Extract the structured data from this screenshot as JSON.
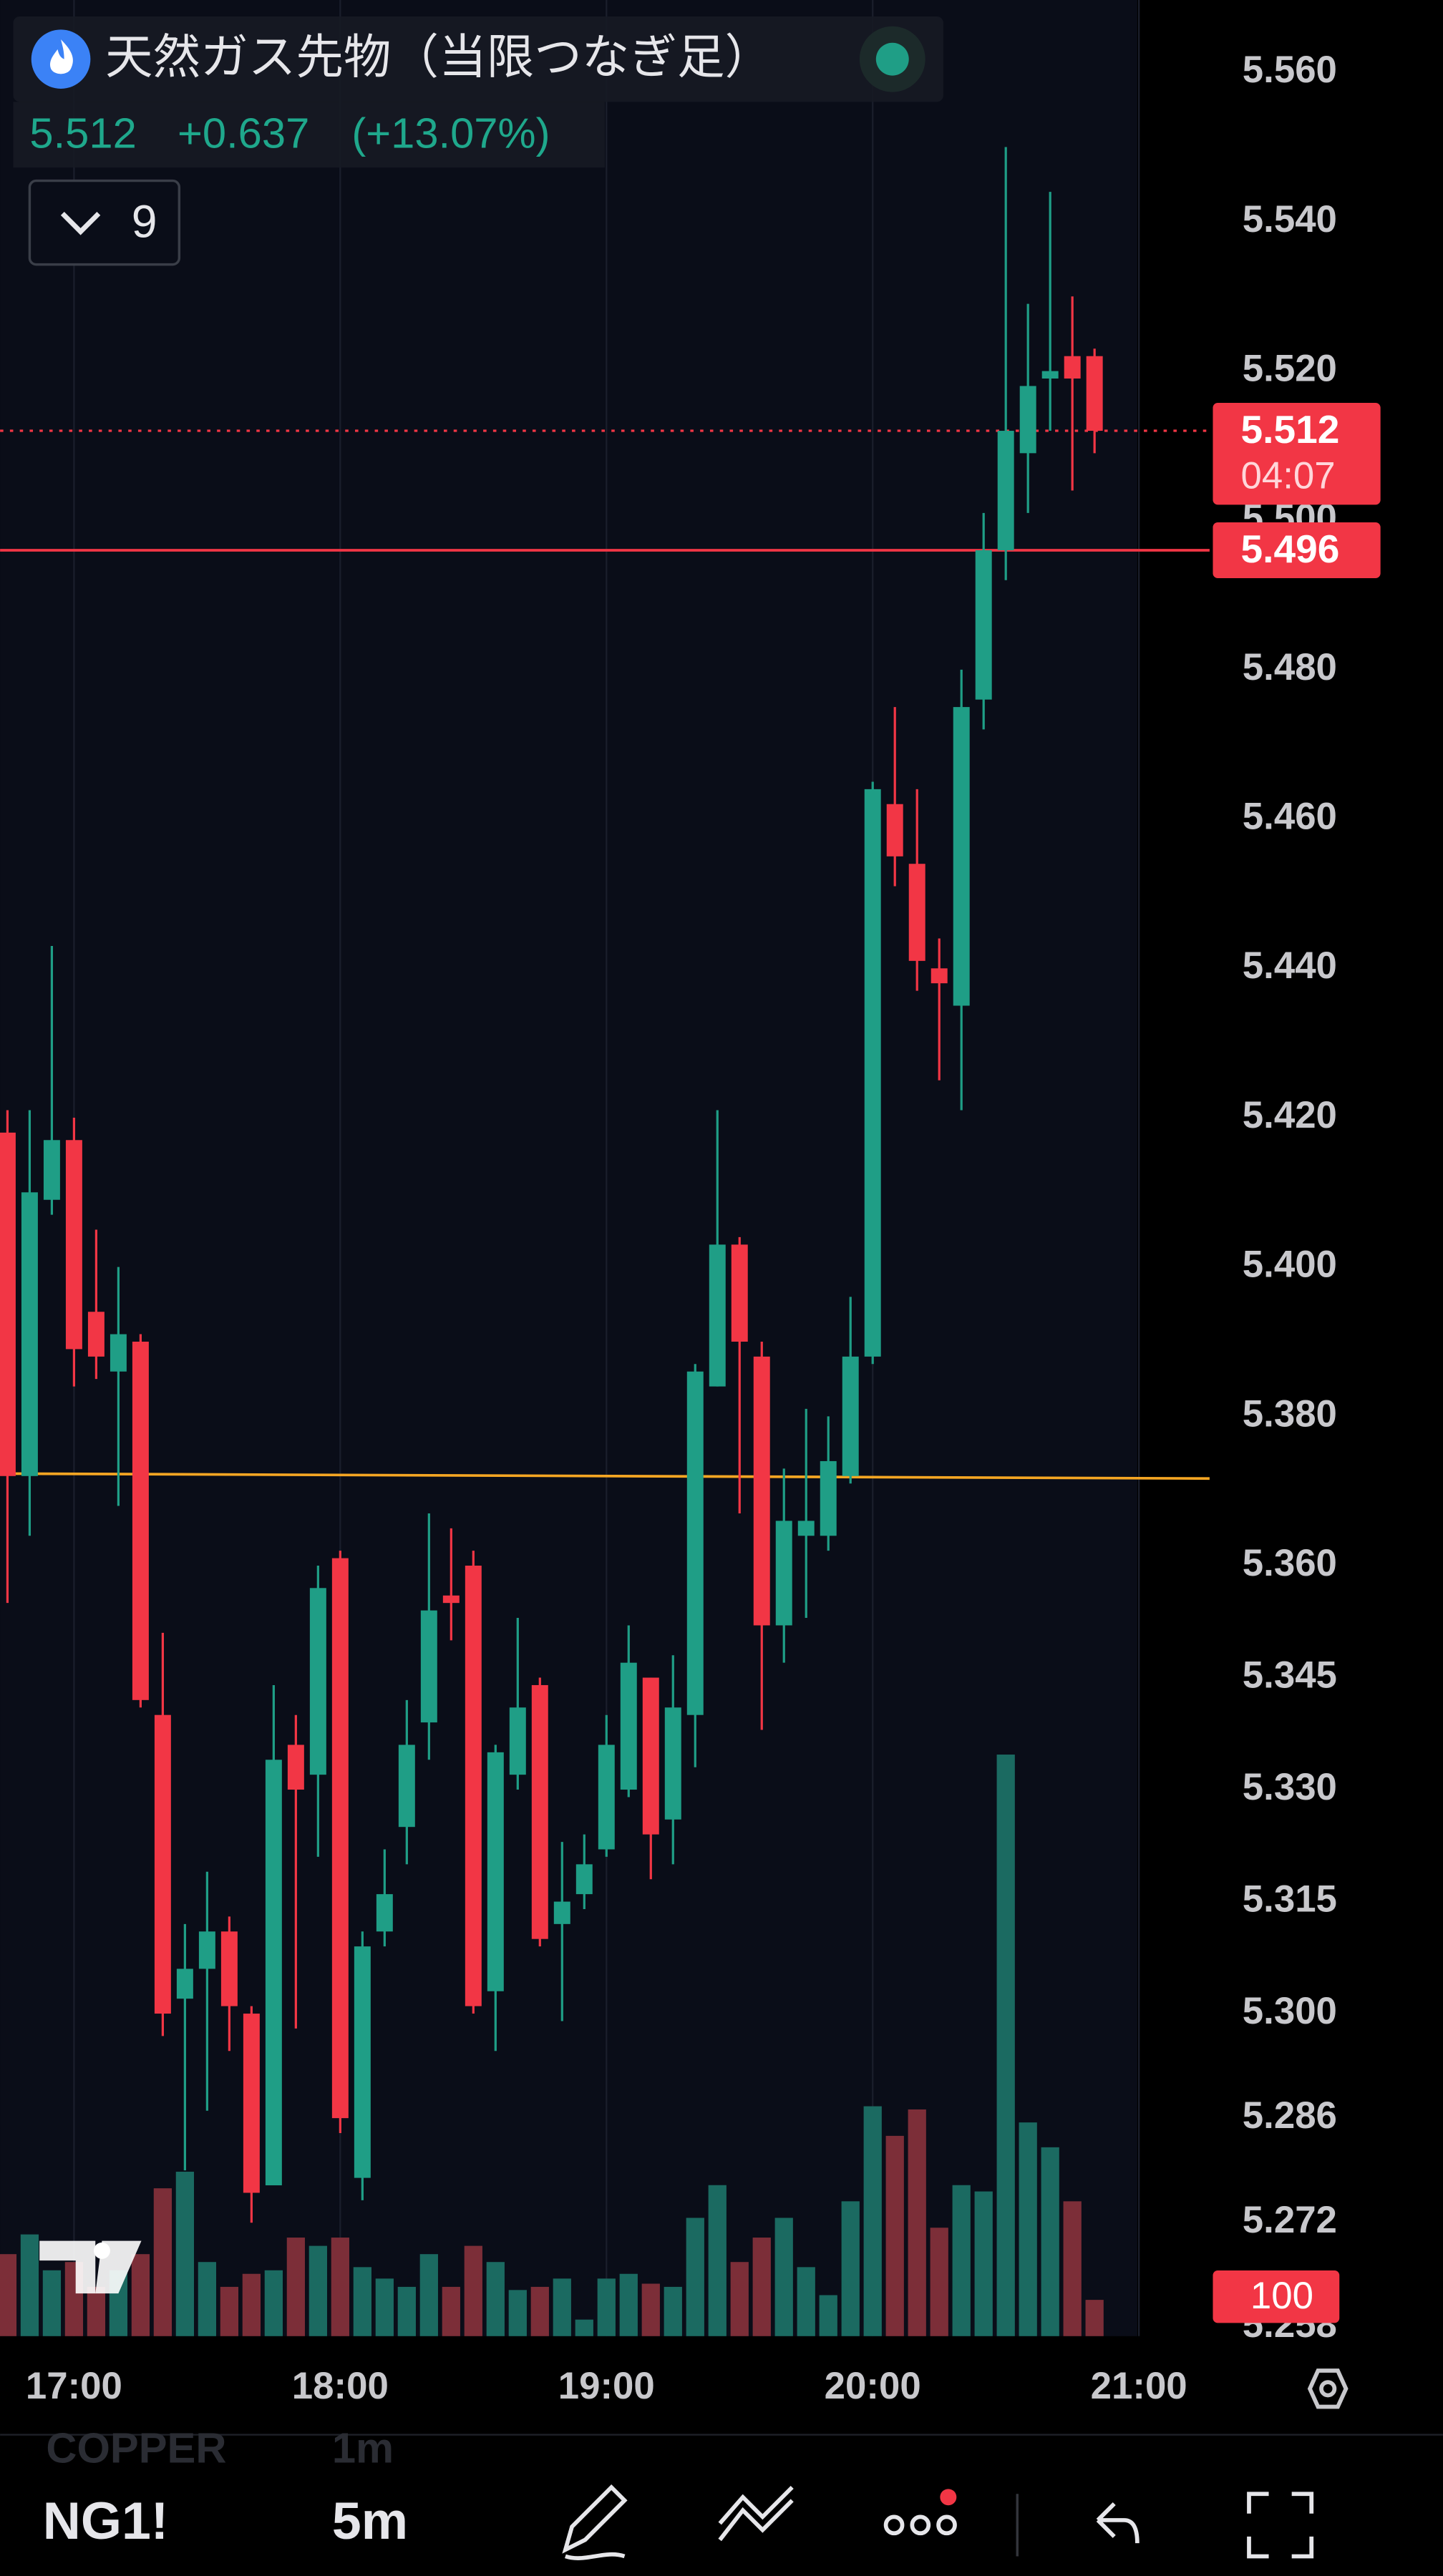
{
  "header": {
    "title": "天然ガス先物（当限つなぎ足）",
    "price": "5.512",
    "change": "+0.637",
    "change_pct": "(+13.07%)",
    "indicator_count": "9"
  },
  "chart_data": {
    "type": "candlestick",
    "categories": [
      null,
      null,
      null,
      "17:00",
      null,
      null,
      null,
      null,
      null,
      null,
      null,
      null,
      null,
      null,
      null,
      "18:00",
      null,
      null,
      null,
      null,
      null,
      null,
      null,
      null,
      null,
      null,
      null,
      "19:00",
      null,
      null,
      null,
      null,
      null,
      null,
      null,
      null,
      null,
      null,
      null,
      "20:00",
      null,
      null,
      null,
      null,
      null,
      null,
      null,
      null,
      null,
      null,
      null,
      "21:00"
    ],
    "open": [
      5.418,
      5.372,
      5.409,
      5.417,
      5.394,
      5.386,
      5.39,
      5.34,
      5.302,
      5.306,
      5.311,
      5.3,
      5.277,
      5.336,
      5.332,
      5.361,
      5.278,
      5.311,
      5.325,
      5.339,
      5.356,
      5.36,
      5.303,
      5.332,
      5.344,
      5.312,
      5.316,
      5.322,
      5.33,
      5.345,
      5.326,
      5.34,
      5.384,
      5.403,
      5.388,
      5.352,
      5.364,
      5.364,
      5.372,
      5.388,
      5.462,
      5.454,
      5.44,
      5.435,
      5.476,
      5.496,
      5.509,
      5.519,
      5.522,
      5.522,
      null,
      null
    ],
    "high": [
      5.421,
      5.421,
      5.443,
      5.42,
      5.405,
      5.4,
      5.391,
      5.351,
      5.312,
      5.319,
      5.313,
      5.301,
      5.344,
      5.34,
      5.36,
      5.362,
      5.311,
      5.322,
      5.342,
      5.367,
      5.365,
      5.362,
      5.336,
      5.353,
      5.345,
      5.323,
      5.324,
      5.34,
      5.352,
      5.345,
      5.348,
      5.387,
      5.421,
      5.404,
      5.39,
      5.373,
      5.381,
      5.38,
      5.396,
      5.465,
      5.475,
      5.464,
      5.444,
      5.48,
      5.501,
      5.55,
      5.529,
      5.544,
      5.53,
      5.523,
      null,
      null
    ],
    "low": [
      5.355,
      5.364,
      5.407,
      5.384,
      5.385,
      5.368,
      5.341,
      5.297,
      5.279,
      5.287,
      5.295,
      5.272,
      5.277,
      5.298,
      5.321,
      5.284,
      5.275,
      5.309,
      5.32,
      5.334,
      5.35,
      5.3,
      5.295,
      5.33,
      5.309,
      5.299,
      5.314,
      5.321,
      5.329,
      5.318,
      5.32,
      5.333,
      5.384,
      5.367,
      5.338,
      5.347,
      5.353,
      5.362,
      5.371,
      5.387,
      5.451,
      5.437,
      5.425,
      5.421,
      5.472,
      5.492,
      5.501,
      5.512,
      5.504,
      5.509,
      null,
      null
    ],
    "close": [
      5.372,
      5.41,
      5.417,
      5.389,
      5.388,
      5.391,
      5.342,
      5.3,
      5.306,
      5.311,
      5.301,
      5.276,
      5.334,
      5.33,
      5.357,
      5.286,
      5.309,
      5.316,
      5.336,
      5.354,
      5.355,
      5.301,
      5.335,
      5.341,
      5.31,
      5.315,
      5.32,
      5.336,
      5.347,
      5.324,
      5.341,
      5.386,
      5.403,
      5.39,
      5.352,
      5.366,
      5.366,
      5.374,
      5.388,
      5.464,
      5.455,
      5.441,
      5.438,
      5.475,
      5.496,
      5.512,
      5.518,
      5.52,
      5.519,
      5.512,
      null,
      null
    ],
    "volume": [
      208,
      258,
      167,
      188,
      125,
      167,
      208,
      375,
      417,
      188,
      125,
      158,
      167,
      250,
      229,
      250,
      175,
      146,
      125,
      208,
      125,
      229,
      188,
      117,
      125,
      146,
      42,
      146,
      158,
      133,
      125,
      300,
      383,
      188,
      250,
      300,
      175,
      104,
      342,
      583,
      508,
      575,
      275,
      383,
      367,
      1475,
      542,
      479,
      342,
      92,
      null,
      null
    ],
    "up_color": "#1f9e86",
    "down_color": "#f23645",
    "up_volume_color": "#1b6a61",
    "down_volume_color": "#7c2e38",
    "ylim": [
      5.2568,
      5.5697
    ],
    "yticks": [
      {
        "value": 5.56,
        "label": "5.560"
      },
      {
        "value": 5.54,
        "label": "5.540"
      },
      {
        "value": 5.52,
        "label": "5.520"
      },
      {
        "value": 5.5,
        "label": "5.500"
      },
      {
        "value": 5.48,
        "label": "5.480"
      },
      {
        "value": 5.46,
        "label": "5.460"
      },
      {
        "value": 5.44,
        "label": "5.440"
      },
      {
        "value": 5.42,
        "label": "5.420"
      },
      {
        "value": 5.4,
        "label": "5.400"
      },
      {
        "value": 5.38,
        "label": "5.380"
      },
      {
        "value": 5.36,
        "label": "5.360"
      },
      5.345,
      {
        "value": 5.33,
        "label": "5.330"
      },
      5.315,
      {
        "value": 5.3,
        "label": "5.300"
      },
      5.286,
      5.272,
      5.258
    ],
    "volume_lim": [
      0,
      1500
    ],
    "volume_tick": 100,
    "current_price": {
      "value": 5.512,
      "countdown": "04:07",
      "color": "#f23645"
    },
    "price_line": {
      "value": 5.496,
      "color": "#f23645"
    },
    "trend_line": {
      "value": 5.372,
      "color": "#f5a623"
    },
    "grid": true
  },
  "toolbar": {
    "symbol": "NG1!",
    "interval": "5m",
    "watermark_symbol": "COPPER",
    "watermark_interval": "1m"
  }
}
